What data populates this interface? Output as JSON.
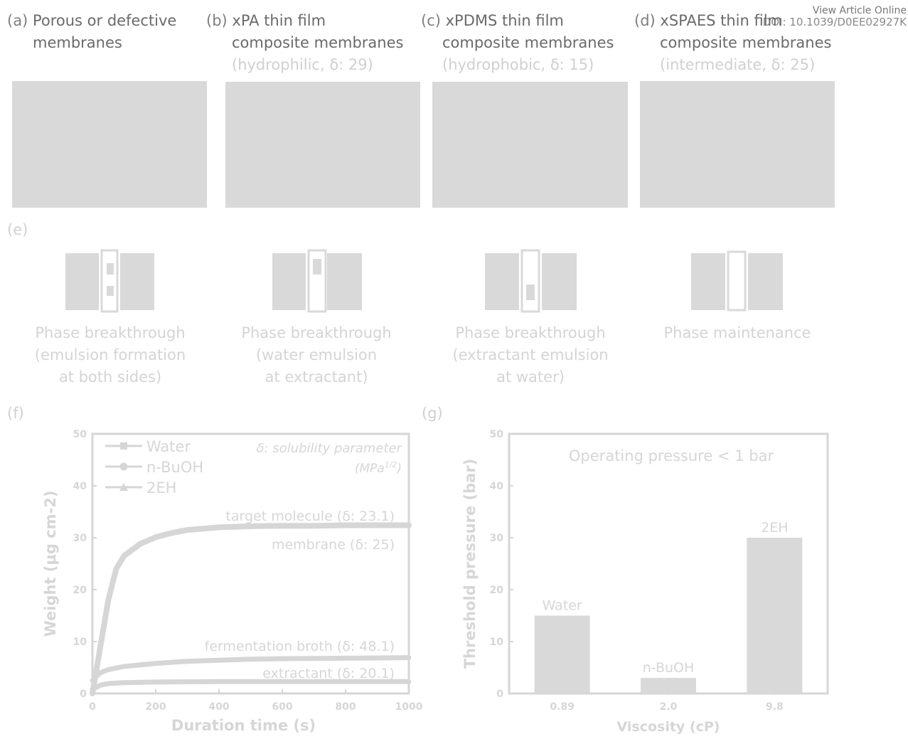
{
  "header": {
    "view_article": "View Article Online",
    "doi": "DOI: 10.1039/D0EE02927K"
  },
  "panels_top": [
    {
      "letter": "(a)",
      "title1": "Porous or defective",
      "title2": "membranes",
      "subtitle": ""
    },
    {
      "letter": "(b)",
      "title1": "xPA thin film",
      "title2": "composite membranes",
      "subtitle": "(hydrophilic, δ: 29)"
    },
    {
      "letter": "(c)",
      "title1": "xPDMS thin film",
      "title2": "composite membranes",
      "subtitle": "(hydrophobic, δ: 15)"
    },
    {
      "letter": "(d)",
      "title1": "xSPAES thin film",
      "title2": "composite membranes",
      "subtitle": "(intermediate, δ: 25)"
    }
  ],
  "panel_e": {
    "letter": "(e)",
    "captions": [
      "Phase breakthrough\n(emulsion formation\nat both sides)",
      "Phase breakthrough\n(water emulsion\nat extractant)",
      "Phase breakthrough\n(extractant emulsion\nat water)",
      "Phase maintenance"
    ]
  },
  "chart_f": {
    "letter": "(f)",
    "note_line1": "δ: solubility parameter",
    "note_line2": "(MPa1/2)",
    "annotations": {
      "target": "target molecule (δ: 23.1)",
      "membrane": "membrane (δ: 25)",
      "broth": "fermentation broth (δ: 48.1)",
      "extractant": "extractant (δ: 20.1)"
    }
  },
  "chart_g": {
    "letter": "(g)",
    "note": "Operating pressure < 1 bar"
  },
  "colors": {
    "text_dark": "#6a6a6a",
    "label": "#7f7f7f",
    "faded": "#d8d8d8",
    "fill": "#d9d9d9"
  },
  "chart_data": [
    {
      "type": "line",
      "xlabel": "Duration time (s)",
      "ylabel": "Weight (μg cm-2)",
      "xlim": [
        0,
        1000
      ],
      "ylim": [
        0,
        50
      ],
      "xticks": [
        0,
        200,
        400,
        600,
        800,
        1000
      ],
      "yticks": [
        0,
        10,
        20,
        30,
        40,
        50
      ],
      "legend_position": "top-left",
      "series": [
        {
          "name": "Water",
          "marker": "square",
          "x": [
            0,
            25,
            50,
            75,
            100,
            150,
            200,
            250,
            300,
            400,
            500,
            600,
            700,
            800,
            900,
            1000
          ],
          "y": [
            0,
            9,
            18,
            24,
            26.5,
            28.8,
            30.1,
            30.9,
            31.5,
            32.0,
            32.2,
            32.3,
            32.3,
            32.4,
            32.4,
            32.4
          ]
        },
        {
          "name": "n-BuOH",
          "marker": "circle",
          "x": [
            0,
            25,
            50,
            100,
            200,
            300,
            400,
            500,
            600,
            800,
            1000
          ],
          "y": [
            2.5,
            4.0,
            4.6,
            5.2,
            5.8,
            6.2,
            6.4,
            6.6,
            6.7,
            6.8,
            6.9
          ]
        },
        {
          "name": "2EH",
          "marker": "triangle",
          "x": [
            0,
            25,
            50,
            100,
            200,
            400,
            600,
            800,
            1000
          ],
          "y": [
            0.8,
            1.6,
            1.9,
            2.1,
            2.2,
            2.3,
            2.3,
            2.3,
            2.3
          ]
        }
      ]
    },
    {
      "type": "bar",
      "xlabel": "Viscosity (cP)",
      "ylabel": "Threshold pressure (bar)",
      "ylim": [
        0,
        50
      ],
      "yticks": [
        0,
        10,
        20,
        30,
        40,
        50
      ],
      "categories": [
        "0.89",
        "2.0",
        "9.8"
      ],
      "bar_labels": [
        "Water",
        "n-BuOH",
        "2EH"
      ],
      "values": [
        15,
        3,
        30
      ]
    }
  ]
}
